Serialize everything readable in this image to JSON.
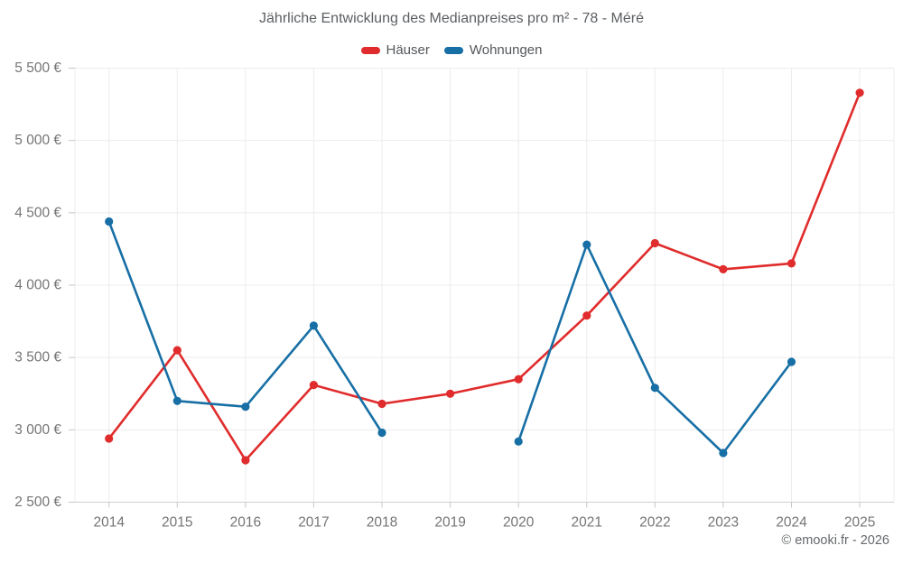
{
  "footer": {
    "copyright": "© emooki.fr - 2026"
  },
  "chart_data": {
    "type": "line",
    "title": "Jährliche Entwicklung des Medianpreises pro m² - 78 - Méré",
    "x": [
      "2014",
      "2015",
      "2016",
      "2017",
      "2018",
      "2019",
      "2020",
      "2021",
      "2022",
      "2023",
      "2024",
      "2025"
    ],
    "series": [
      {
        "name": "Häuser",
        "color": "#e02c2c",
        "values": [
          2940,
          3550,
          2790,
          3310,
          3180,
          3250,
          3350,
          3790,
          4290,
          4110,
          4150,
          5330
        ]
      },
      {
        "name": "Wohnungen",
        "color": "#176fa5",
        "values": [
          4440,
          3200,
          3160,
          3720,
          2980,
          null,
          2920,
          4280,
          3290,
          2840,
          3470,
          null
        ]
      }
    ],
    "ylim": [
      2500,
      5500
    ],
    "yticks": [
      2500,
      3000,
      3500,
      4000,
      4500,
      5000,
      5500
    ],
    "ytick_labels": [
      "2 500 €",
      "3 000 €",
      "3 500 €",
      "4 000 €",
      "4 500 €",
      "5 000 €",
      "5 500 €"
    ],
    "currency": "€",
    "grid": true,
    "legend_position": "top"
  }
}
